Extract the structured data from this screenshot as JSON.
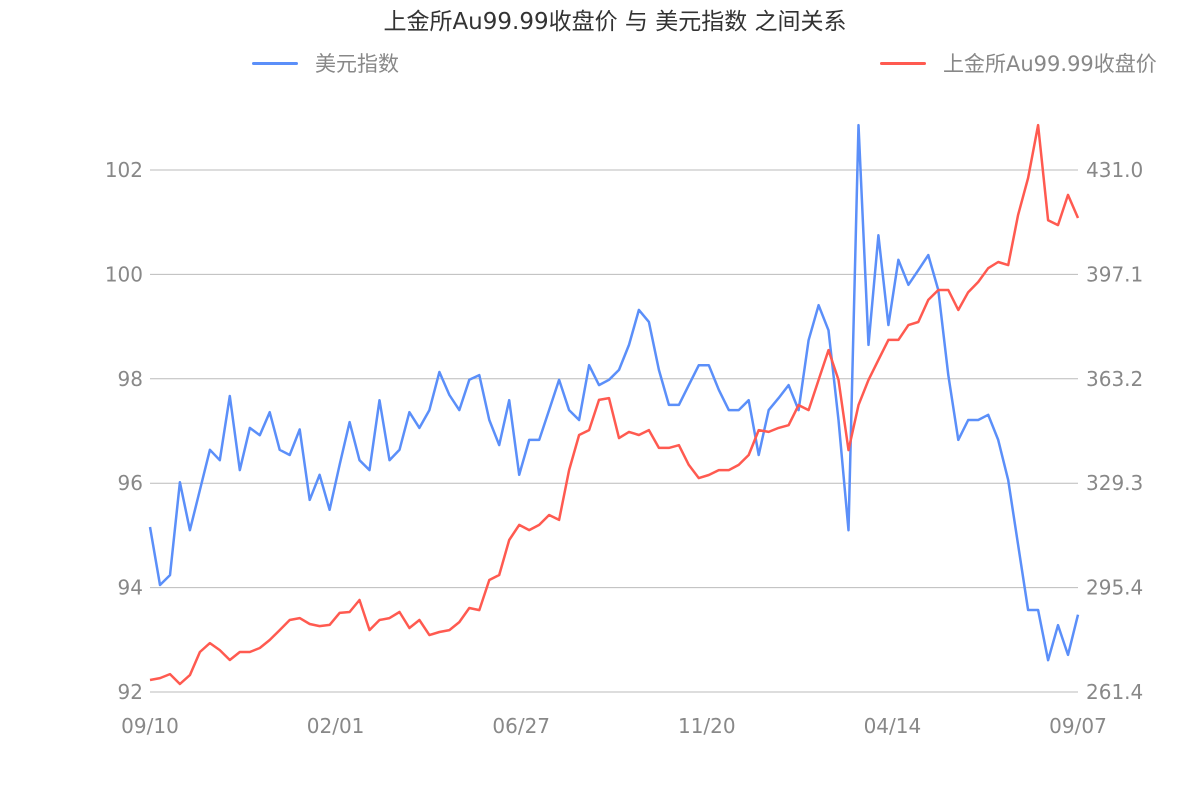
{
  "chart_data": {
    "type": "line",
    "title": "上金所Au99.99收盘价 与 美元指数 之间关系",
    "x_tick_labels": [
      "09/10",
      "02/01",
      "06/27",
      "11/20",
      "04/14",
      "09/07"
    ],
    "left_axis": {
      "ylim": [
        92,
        102
      ],
      "ticks": [
        "92",
        "94",
        "96",
        "98",
        "100",
        "102"
      ]
    },
    "right_axis": {
      "ylim": [
        261.4,
        431.0
      ],
      "ticks": [
        "261.4",
        "295.4",
        "329.3",
        "363.2",
        "397.1",
        "431.0"
      ]
    },
    "grid": true,
    "legend_placement": "top",
    "series": [
      {
        "name": "美元指数",
        "axis": "left",
        "color": "#5B8FF9",
        "values": [
          95.16,
          94.05,
          94.24,
          96.02,
          95.1,
          95.87,
          96.64,
          96.44,
          97.67,
          96.25,
          97.06,
          96.92,
          97.36,
          96.64,
          96.54,
          97.03,
          95.68,
          96.16,
          95.49,
          96.35,
          97.17,
          96.44,
          96.25,
          97.59,
          96.44,
          96.64,
          97.36,
          97.06,
          97.4,
          98.13,
          97.69,
          97.4,
          97.98,
          98.07,
          97.21,
          96.73,
          97.59,
          96.16,
          96.83,
          96.83,
          97.4,
          97.98,
          97.4,
          97.21,
          98.26,
          97.88,
          97.98,
          98.17,
          98.65,
          99.32,
          99.09,
          98.17,
          97.5,
          97.5,
          97.88,
          98.26,
          98.26,
          97.79,
          97.4,
          97.4,
          97.59,
          96.54,
          97.4,
          97.63,
          97.88,
          97.4,
          98.74,
          99.41,
          98.93,
          97.21,
          95.1,
          102.86,
          98.65,
          100.75,
          99.03,
          100.28,
          99.8,
          100.08,
          100.37,
          99.7,
          98.07,
          96.83,
          97.21,
          97.21,
          97.31,
          96.83,
          96.06,
          94.82,
          93.57,
          93.57,
          92.61,
          93.28,
          92.71,
          93.48
        ]
      },
      {
        "name": "上金所Au99.99收盘价",
        "axis": "right",
        "color": "#FF5A50",
        "values": [
          265.3,
          265.9,
          267.2,
          264.0,
          266.9,
          274.4,
          277.3,
          275.0,
          271.8,
          274.4,
          274.4,
          275.7,
          278.3,
          281.5,
          284.8,
          285.4,
          283.5,
          282.8,
          283.2,
          287.1,
          287.4,
          291.3,
          281.5,
          284.8,
          285.4,
          287.4,
          282.2,
          284.8,
          279.9,
          280.9,
          281.5,
          284.1,
          288.7,
          288.0,
          297.8,
          299.4,
          310.8,
          315.7,
          314.0,
          315.7,
          318.9,
          317.3,
          333.5,
          344.9,
          346.5,
          356.3,
          356.9,
          343.9,
          345.9,
          344.9,
          346.5,
          340.7,
          340.7,
          341.6,
          335.2,
          330.9,
          331.9,
          333.5,
          333.5,
          335.2,
          338.4,
          346.5,
          345.9,
          347.2,
          348.1,
          354.6,
          353.0,
          362.8,
          372.5,
          362.8,
          340.0,
          354.6,
          362.8,
          369.3,
          375.8,
          375.8,
          380.6,
          381.6,
          388.8,
          392.0,
          392.0,
          385.5,
          391.3,
          394.6,
          399.1,
          401.1,
          400.1,
          416.4,
          428.4,
          445.6,
          414.7,
          413.1,
          422.9,
          415.4
        ]
      }
    ]
  }
}
